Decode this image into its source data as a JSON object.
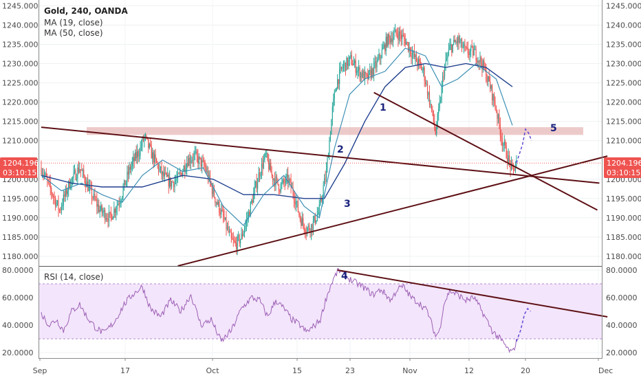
{
  "header": {
    "symbol": "Gold, 240, OANDA",
    "ma19": "MA (19, close)",
    "ma50": "MA (50, close)"
  },
  "rsi_label": "RSI (14, close)",
  "price_tag": {
    "price": "1204.196",
    "countdown": "03:10:15",
    "color": "#ef5350"
  },
  "annotations": [
    "1",
    "2",
    "3",
    "4",
    "5"
  ],
  "colors": {
    "candle_up": "#26a69a",
    "candle_down": "#ef5350",
    "ma19": "#3c8fb5",
    "ma50": "#1f3f8f",
    "trendline": "#5d0f14",
    "zone": "#e6b3b3",
    "rsi_line": "#9c5fb5",
    "rsi_band": "#f3e5fb",
    "projection": "#5e4bd6"
  },
  "chart_data": [
    {
      "type": "candlestick",
      "title": "Gold, 240, OANDA",
      "y_ticks": [
        "1180.000",
        "1185.000",
        "1190.000",
        "1195.000",
        "1200.000",
        "1205.000",
        "1210.000",
        "1215.000",
        "1220.000",
        "1225.000",
        "1230.000",
        "1235.000",
        "1240.000",
        "1245.000"
      ],
      "ylim": [
        1177.5,
        1246.5
      ],
      "x_ticks": [
        "Sep",
        "17",
        "Oct",
        "15",
        "23",
        "Nov",
        "12",
        "20",
        "Dec"
      ],
      "series_names": [
        "MA (19, close)",
        "MA (50, close)"
      ],
      "price_path": [
        [
          0,
          1203
        ],
        [
          8,
          1198
        ],
        [
          18,
          1192
        ],
        [
          28,
          1199
        ],
        [
          38,
          1203
        ],
        [
          48,
          1197
        ],
        [
          58,
          1192
        ],
        [
          68,
          1190
        ],
        [
          78,
          1195
        ],
        [
          88,
          1203
        ],
        [
          98,
          1208
        ],
        [
          102,
          1211
        ],
        [
          110,
          1206
        ],
        [
          120,
          1201
        ],
        [
          128,
          1199
        ],
        [
          135,
          1200
        ],
        [
          145,
          1205
        ],
        [
          152,
          1206
        ],
        [
          162,
          1203
        ],
        [
          172,
          1195
        ],
        [
          180,
          1190
        ],
        [
          188,
          1184
        ],
        [
          192,
          1183
        ],
        [
          198,
          1185
        ],
        [
          205,
          1191
        ],
        [
          210,
          1196
        ],
        [
          216,
          1202
        ],
        [
          222,
          1206
        ],
        [
          228,
          1201
        ],
        [
          236,
          1198
        ],
        [
          244,
          1200
        ],
        [
          250,
          1196
        ],
        [
          256,
          1190
        ],
        [
          262,
          1187
        ],
        [
          268,
          1188
        ],
        [
          275,
          1192
        ],
        [
          282,
          1202
        ],
        [
          288,
          1218
        ],
        [
          292,
          1225
        ],
        [
          298,
          1229
        ],
        [
          306,
          1231
        ],
        [
          314,
          1228
        ],
        [
          322,
          1226
        ],
        [
          332,
          1230
        ],
        [
          342,
          1236
        ],
        [
          352,
          1238
        ],
        [
          360,
          1236
        ],
        [
          368,
          1232
        ],
        [
          378,
          1228
        ],
        [
          386,
          1218
        ],
        [
          390,
          1212
        ],
        [
          394,
          1219
        ],
        [
          398,
          1228
        ],
        [
          404,
          1234
        ],
        [
          412,
          1236
        ],
        [
          420,
          1233
        ],
        [
          428,
          1233
        ],
        [
          436,
          1230
        ],
        [
          444,
          1224
        ],
        [
          450,
          1218
        ],
        [
          456,
          1210
        ],
        [
          462,
          1205
        ],
        [
          466,
          1202
        ],
        [
          470,
          1204.2
        ]
      ],
      "ma19_path": [
        [
          0,
          1201
        ],
        [
          20,
          1197
        ],
        [
          40,
          1199
        ],
        [
          60,
          1196
        ],
        [
          80,
          1194
        ],
        [
          100,
          1201
        ],
        [
          120,
          1205
        ],
        [
          140,
          1202
        ],
        [
          160,
          1203
        ],
        [
          180,
          1193
        ],
        [
          200,
          1188
        ],
        [
          220,
          1196
        ],
        [
          240,
          1201
        ],
        [
          260,
          1193
        ],
        [
          275,
          1190
        ],
        [
          290,
          1208
        ],
        [
          305,
          1222
        ],
        [
          320,
          1226
        ],
        [
          340,
          1228
        ],
        [
          360,
          1234
        ],
        [
          380,
          1232
        ],
        [
          396,
          1224
        ],
        [
          412,
          1226
        ],
        [
          430,
          1230
        ],
        [
          450,
          1226
        ],
        [
          466,
          1214
        ]
      ],
      "ma50_path": [
        [
          0,
          1201
        ],
        [
          30,
          1199
        ],
        [
          60,
          1198
        ],
        [
          100,
          1198
        ],
        [
          140,
          1201
        ],
        [
          170,
          1200
        ],
        [
          200,
          1196
        ],
        [
          230,
          1196
        ],
        [
          260,
          1195
        ],
        [
          280,
          1195
        ],
        [
          300,
          1204
        ],
        [
          320,
          1215
        ],
        [
          340,
          1224
        ],
        [
          360,
          1229
        ],
        [
          380,
          1230
        ],
        [
          400,
          1229
        ],
        [
          420,
          1230
        ],
        [
          440,
          1229
        ],
        [
          466,
          1224
        ]
      ],
      "resistance_zone": [
        1211.5,
        1213.5
      ],
      "trendlines": [
        {
          "label": "1",
          "from": [
            329,
            1222.5
          ],
          "to": [
            550,
            1192
          ]
        },
        {
          "label": "2",
          "from": [
            0,
            1213.5
          ],
          "to": [
            552,
            1199
          ]
        },
        {
          "label": "3",
          "from": [
            135,
            1177.5
          ],
          "to": [
            560,
            1206
          ]
        }
      ],
      "projection_path": [
        [
          470,
          1204.2
        ],
        [
          476,
          1209
        ],
        [
          479,
          1213
        ],
        [
          482,
          1212
        ],
        [
          485,
          1210
        ]
      ],
      "last_price": 1204.196
    },
    {
      "type": "line",
      "title": "RSI (14, close)",
      "y_ticks": [
        "20.0000",
        "40.0000",
        "60.0000",
        "80.0000"
      ],
      "ylim": [
        16,
        82
      ],
      "band": [
        30,
        70
      ],
      "rsi_path": [
        [
          0,
          48
        ],
        [
          8,
          40
        ],
        [
          15,
          44
        ],
        [
          22,
          36
        ],
        [
          30,
          50
        ],
        [
          38,
          55
        ],
        [
          46,
          45
        ],
        [
          54,
          38
        ],
        [
          62,
          34
        ],
        [
          72,
          42
        ],
        [
          82,
          55
        ],
        [
          90,
          62
        ],
        [
          100,
          68
        ],
        [
          108,
          52
        ],
        [
          118,
          46
        ],
        [
          128,
          58
        ],
        [
          138,
          50
        ],
        [
          148,
          62
        ],
        [
          158,
          40
        ],
        [
          168,
          44
        ],
        [
          178,
          28
        ],
        [
          188,
          36
        ],
        [
          198,
          52
        ],
        [
          208,
          60
        ],
        [
          216,
          58
        ],
        [
          224,
          46
        ],
        [
          232,
          58
        ],
        [
          240,
          52
        ],
        [
          248,
          44
        ],
        [
          256,
          40
        ],
        [
          262,
          35
        ],
        [
          268,
          38
        ],
        [
          276,
          44
        ],
        [
          282,
          60
        ],
        [
          288,
          72
        ],
        [
          294,
          80
        ],
        [
          300,
          76
        ],
        [
          308,
          72
        ],
        [
          318,
          68
        ],
        [
          328,
          62
        ],
        [
          336,
          66
        ],
        [
          346,
          58
        ],
        [
          352,
          66
        ],
        [
          358,
          68
        ],
        [
          366,
          60
        ],
        [
          374,
          56
        ],
        [
          382,
          50
        ],
        [
          390,
          32
        ],
        [
          394,
          36
        ],
        [
          398,
          55
        ],
        [
          404,
          65
        ],
        [
          412,
          62
        ],
        [
          420,
          58
        ],
        [
          428,
          60
        ],
        [
          436,
          50
        ],
        [
          446,
          36
        ],
        [
          456,
          28
        ],
        [
          462,
          22
        ],
        [
          466,
          20
        ],
        [
          470,
          28
        ]
      ],
      "trendline": {
        "label": "4",
        "from": [
          293,
          80
        ],
        "to": [
          560,
          46
        ]
      },
      "projection_path": [
        [
          470,
          28
        ],
        [
          474,
          36
        ],
        [
          478,
          48
        ],
        [
          481,
          52
        ],
        [
          484,
          50
        ]
      ]
    }
  ]
}
